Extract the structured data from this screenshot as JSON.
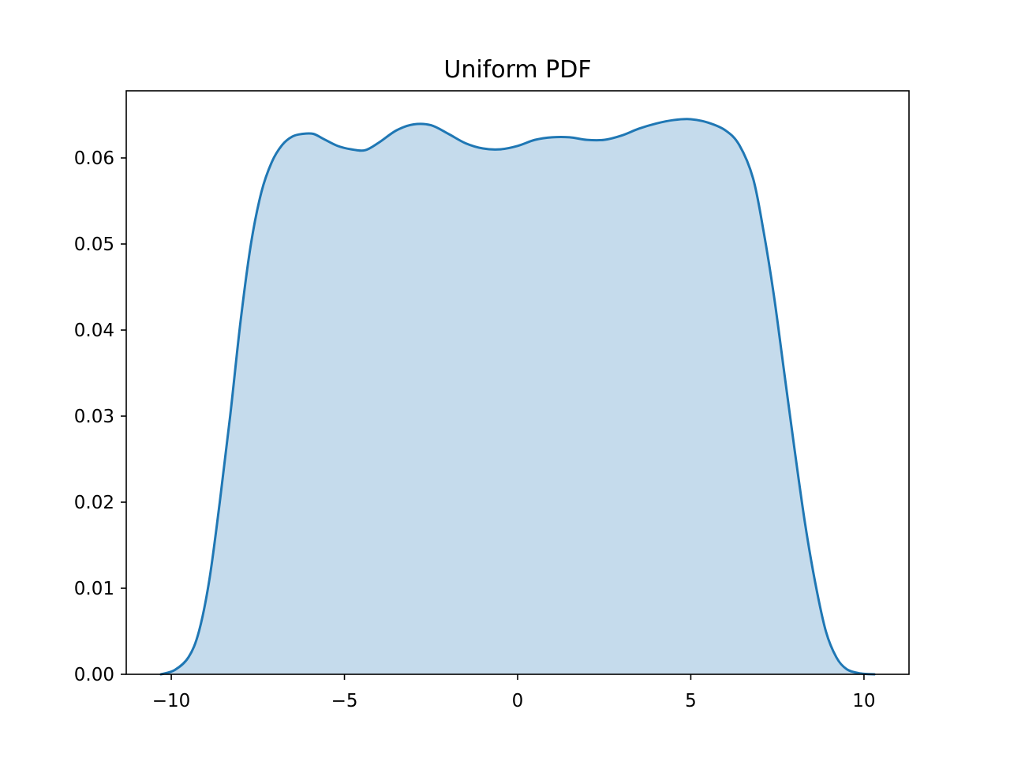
{
  "chart_data": {
    "type": "area",
    "title": "Uniform PDF",
    "xlabel": "",
    "ylabel": "",
    "xlim": [
      -11.3,
      11.3
    ],
    "ylim": [
      0,
      0.0678
    ],
    "grid": false,
    "legend": "none",
    "x_ticks": [
      -10,
      -5,
      0,
      5,
      10
    ],
    "x_tick_labels": [
      "−10",
      "−5",
      "0",
      "5",
      "10"
    ],
    "y_ticks": [
      0,
      0.01,
      0.02,
      0.03,
      0.04,
      0.05,
      0.06
    ],
    "y_tick_labels": [
      "0.00",
      "0.01",
      "0.02",
      "0.03",
      "0.04",
      "0.05",
      "0.06"
    ],
    "colors": {
      "line": "#1f77b4",
      "fill": "#c5dbec",
      "axes": "#000000"
    },
    "series": [
      {
        "x": [
          -10.3,
          -9.9,
          -9.5,
          -9.2,
          -8.9,
          -8.6,
          -8.3,
          -8.0,
          -7.7,
          -7.4,
          -7.1,
          -6.8,
          -6.5,
          -6.2,
          -5.9,
          -5.6,
          -5.2,
          -4.8,
          -4.4,
          -4.0,
          -3.5,
          -3.0,
          -2.5,
          -2.0,
          -1.5,
          -1.0,
          -0.5,
          0.0,
          0.5,
          1.0,
          1.5,
          2.0,
          2.5,
          3.0,
          3.5,
          4.0,
          4.5,
          5.0,
          5.5,
          6.0,
          6.4,
          6.8,
          7.1,
          7.4,
          7.7,
          8.0,
          8.3,
          8.6,
          8.9,
          9.2,
          9.5,
          9.9,
          10.3
        ],
        "y": [
          0.0,
          0.0005,
          0.002,
          0.005,
          0.011,
          0.02,
          0.03,
          0.041,
          0.05,
          0.056,
          0.0595,
          0.0615,
          0.0625,
          0.0628,
          0.0628,
          0.0622,
          0.0614,
          0.061,
          0.0609,
          0.0618,
          0.0632,
          0.0639,
          0.0638,
          0.0628,
          0.0617,
          0.0611,
          0.061,
          0.0614,
          0.0621,
          0.0624,
          0.0624,
          0.0621,
          0.0621,
          0.0626,
          0.0634,
          0.064,
          0.0644,
          0.0645,
          0.0641,
          0.0632,
          0.0615,
          0.0576,
          0.0515,
          0.044,
          0.035,
          0.026,
          0.0175,
          0.0105,
          0.005,
          0.002,
          0.0006,
          0.0001,
          0.0
        ]
      }
    ]
  }
}
